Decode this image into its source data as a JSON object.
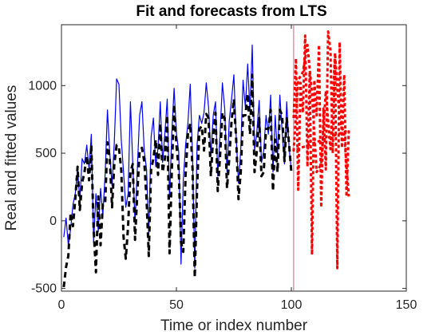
{
  "chart_data": {
    "type": "line",
    "title": "Fit and forecasts from LTS",
    "xlabel": "Time or index number",
    "ylabel": "Real and fitted values",
    "xlim": [
      0,
      150
    ],
    "ylim": [
      -520,
      1450
    ],
    "xticks": [
      0,
      50,
      100,
      150
    ],
    "yticks": [
      -500,
      0,
      500,
      1000
    ],
    "ytick_labels": [
      "-500",
      "0",
      "500",
      "1000"
    ],
    "grid": false,
    "vertical_line": {
      "x": 101,
      "color": "#d45a8a"
    },
    "series": [
      {
        "key": "real",
        "color": "#0000ff",
        "style": "solid",
        "x": [
          1,
          2,
          3,
          4,
          5,
          6,
          7,
          8,
          9,
          10,
          11,
          12,
          13,
          14,
          15,
          16,
          17,
          18,
          19,
          20,
          21,
          22,
          23,
          24,
          25,
          26,
          27,
          28,
          29,
          30,
          31,
          32,
          33,
          34,
          35,
          36,
          37,
          38,
          39,
          40,
          41,
          42,
          43,
          44,
          45,
          46,
          47,
          48,
          49,
          50,
          51,
          52,
          53,
          54,
          55,
          56,
          57,
          58,
          59,
          60,
          61,
          62,
          63,
          64,
          65,
          66,
          67,
          68,
          69,
          70,
          71,
          72,
          73,
          74,
          75,
          76,
          77,
          78,
          79,
          80,
          81,
          82,
          83,
          84,
          85,
          86,
          87,
          88,
          89,
          90,
          91,
          92,
          93,
          94,
          95,
          96,
          97,
          98,
          99,
          100
        ],
        "values": [
          -120,
          20,
          -180,
          -60,
          120,
          200,
          380,
          150,
          460,
          420,
          560,
          380,
          640,
          -160,
          200,
          -80,
          240,
          40,
          340,
          820,
          500,
          260,
          580,
          1050,
          1010,
          600,
          360,
          100,
          200,
          880,
          430,
          -20,
          380,
          780,
          880,
          520,
          380,
          -100,
          620,
          760,
          400,
          540,
          880,
          430,
          650,
          900,
          160,
          640,
          980,
          650,
          510,
          -320,
          300,
          560,
          720,
          1010,
          480,
          -350,
          560,
          780,
          720,
          800,
          1020,
          840,
          480,
          780,
          880,
          330,
          640,
          1020,
          830,
          360,
          740,
          900,
          1080,
          620,
          280,
          520,
          1040,
          840,
          1160,
          810,
          1300,
          520,
          660,
          890,
          430,
          520,
          780,
          640,
          930,
          360,
          780,
          480,
          930,
          660,
          420,
          880,
          550,
          370
        ]
      },
      {
        "key": "fitted",
        "color": "#000000",
        "style": "dashed",
        "x": [
          1,
          2,
          3,
          4,
          5,
          6,
          7,
          8,
          9,
          10,
          11,
          12,
          13,
          14,
          15,
          16,
          17,
          18,
          19,
          20,
          21,
          22,
          23,
          24,
          25,
          26,
          27,
          28,
          29,
          30,
          31,
          32,
          33,
          34,
          35,
          36,
          37,
          38,
          39,
          40,
          41,
          42,
          43,
          44,
          45,
          46,
          47,
          48,
          49,
          50,
          51,
          52,
          53,
          54,
          55,
          56,
          57,
          58,
          59,
          60,
          61,
          62,
          63,
          64,
          65,
          66,
          67,
          68,
          69,
          70,
          71,
          72,
          73,
          74,
          75,
          76,
          77,
          78,
          79,
          80,
          81,
          82,
          83,
          84,
          85,
          86,
          87,
          88,
          89,
          90,
          91,
          92,
          93,
          94,
          95,
          96,
          97,
          98,
          99,
          100
        ],
        "values": [
          -490,
          -340,
          -260,
          60,
          -40,
          160,
          400,
          80,
          280,
          360,
          480,
          300,
          560,
          -60,
          -380,
          180,
          -180,
          120,
          120,
          580,
          460,
          100,
          420,
          560,
          540,
          380,
          -120,
          -280,
          -40,
          360,
          420,
          -140,
          200,
          520,
          540,
          440,
          160,
          -260,
          380,
          460,
          600,
          340,
          720,
          360,
          460,
          780,
          -240,
          360,
          860,
          560,
          380,
          -160,
          -230,
          340,
          640,
          720,
          390,
          -420,
          240,
          680,
          700,
          520,
          790,
          760,
          330,
          630,
          800,
          220,
          480,
          800,
          760,
          240,
          460,
          740,
          900,
          600,
          160,
          360,
          780,
          780,
          940,
          640,
          1080,
          360,
          520,
          760,
          330,
          360,
          680,
          680,
          820,
          220,
          600,
          360,
          820,
          780,
          440,
          760,
          570,
          360
        ]
      },
      {
        "key": "forecast",
        "color": "#ff0000",
        "style": "dotted-thick",
        "x": [
          101,
          102,
          103,
          104,
          105,
          106,
          107,
          108,
          109,
          110,
          111,
          112,
          113,
          114,
          115,
          116,
          117,
          118,
          119,
          120,
          121,
          122,
          123,
          124,
          125,
          101,
          103,
          105,
          107,
          109,
          111,
          113,
          115,
          117,
          119,
          121,
          123,
          125
        ],
        "values": [
          760,
          1200,
          230,
          1020,
          800,
          1370,
          400,
          1100,
          -250,
          1040,
          780,
          1300,
          100,
          830,
          380,
          1400,
          1260,
          500,
          1200,
          -350,
          1320,
          540,
          1080,
          180,
          670,
          520,
          1040,
          1100,
          1300,
          940,
          360,
          420,
          960,
          530,
          1240,
          740,
          640,
          180
        ]
      }
    ]
  }
}
